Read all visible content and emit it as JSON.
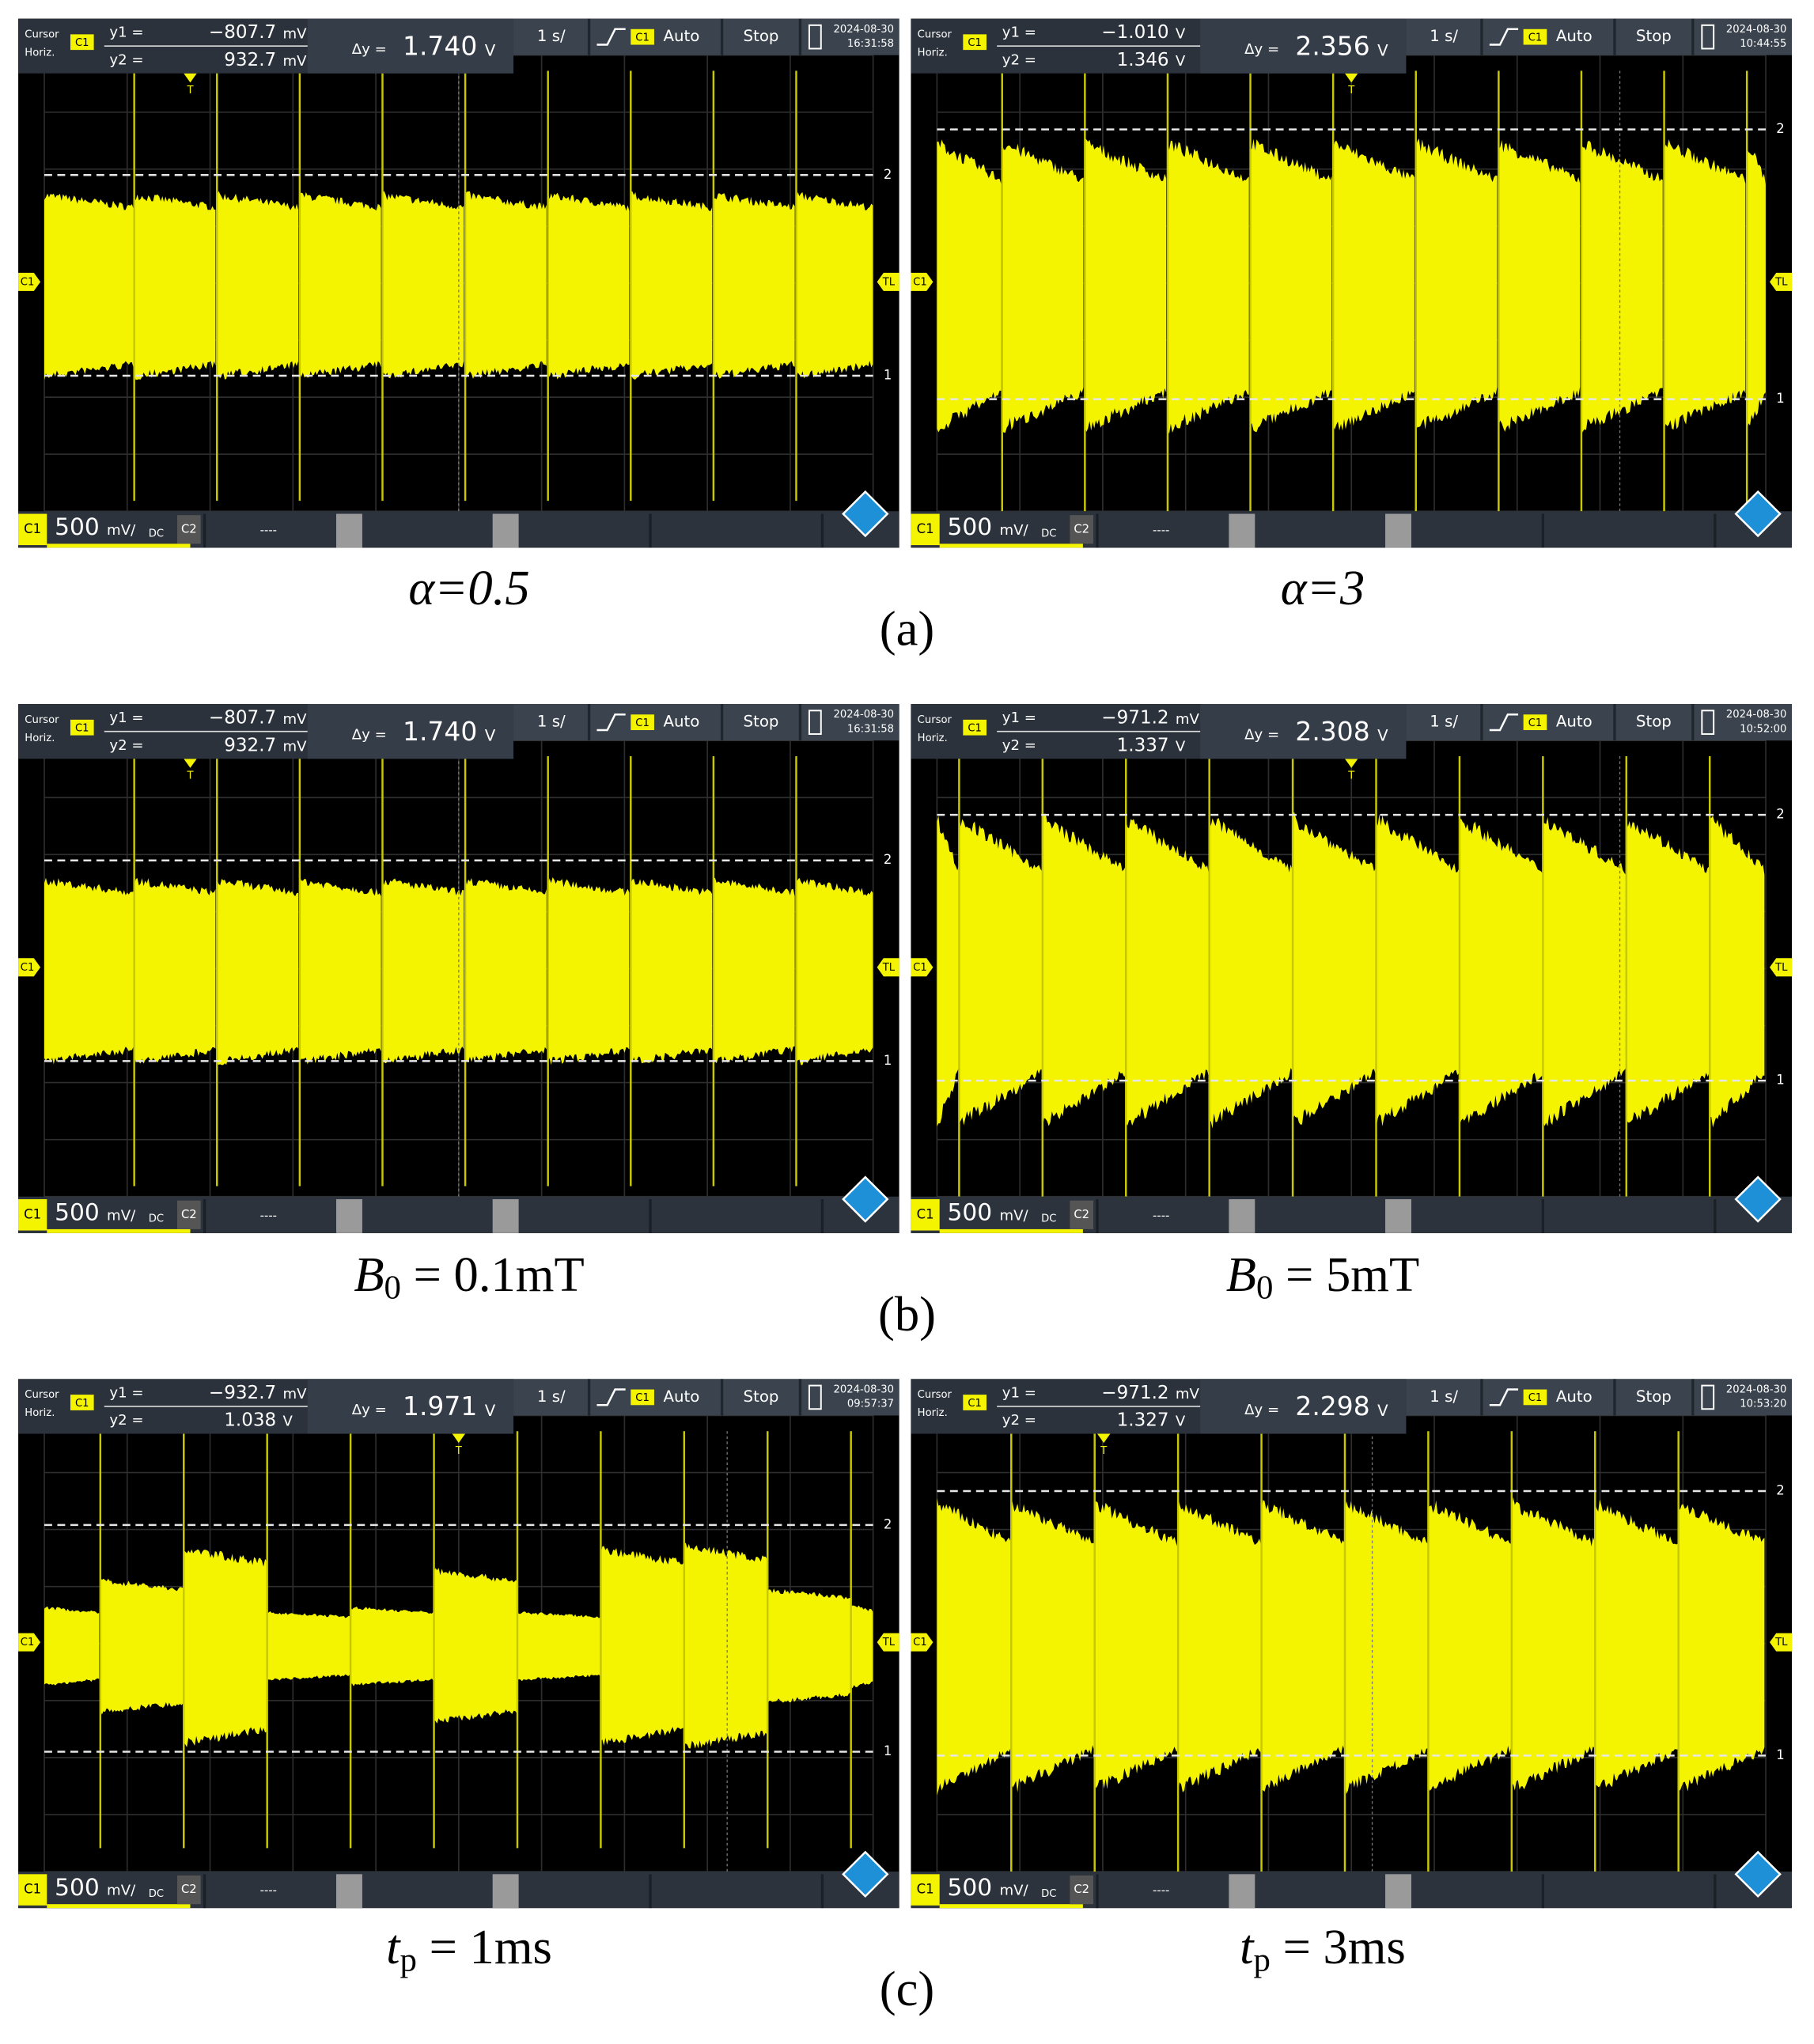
{
  "rows": [
    {
      "label": "(a)",
      "panels": [
        {
          "caption": {
            "text": "α=0.5"
          },
          "scope": {
            "cursor_label": "Cursor",
            "horiz_label": "Horiz.",
            "channel": "C1",
            "y1_label": "y1 =",
            "y1_value": "−807.7",
            "y1_unit": "mV",
            "y2_label": "y2 =",
            "y2_value": "932.7",
            "y2_unit": "mV",
            "dy_label": "Δy =",
            "dy_value": "1.740",
            "dy_unit": "V",
            "timebase": "1 s/",
            "trigger_source": "C1",
            "trigger_mode": "Auto",
            "run_state": "Stop",
            "date": "2024-08-30",
            "time": "16:31:58",
            "footer_channel": "C1",
            "scale": "500",
            "scale_unit": "mV/",
            "coupling": "DC",
            "ch2": "C2",
            "ch2_state": "----",
            "left_marker": "C1",
            "right_marker": "TL",
            "cursor2_marker": "2",
            "cursor1_marker": "1",
            "trigger_marker": "T"
          }
        },
        {
          "caption": {
            "text": "α=3"
          },
          "scope": {
            "cursor_label": "Cursor",
            "horiz_label": "Horiz.",
            "channel": "C1",
            "y1_label": "y1 =",
            "y1_value": "−1.010",
            "y1_unit": "V",
            "y2_label": "y2 =",
            "y2_value": "1.346",
            "y2_unit": "V",
            "dy_label": "Δy =",
            "dy_value": "2.356",
            "dy_unit": "V",
            "timebase": "1 s/",
            "trigger_source": "C1",
            "trigger_mode": "Auto",
            "run_state": "Stop",
            "date": "2024-08-30",
            "time": "10:44:55",
            "footer_channel": "C1",
            "scale": "500",
            "scale_unit": "mV/",
            "coupling": "DC",
            "ch2": "C2",
            "ch2_state": "----",
            "left_marker": "C1",
            "right_marker": "TL",
            "cursor2_marker": "2",
            "cursor1_marker": "1",
            "trigger_marker": "T"
          }
        }
      ]
    },
    {
      "label": "(b)",
      "panels": [
        {
          "caption": {
            "symbol": "B",
            "subscript": "0",
            "text": " = 0.1mT"
          },
          "scope": {
            "cursor_label": "Cursor",
            "horiz_label": "Horiz.",
            "channel": "C1",
            "y1_label": "y1 =",
            "y1_value": "−807.7",
            "y1_unit": "mV",
            "y2_label": "y2 =",
            "y2_value": "932.7",
            "y2_unit": "mV",
            "dy_label": "Δy =",
            "dy_value": "1.740",
            "dy_unit": "V",
            "timebase": "1 s/",
            "trigger_source": "C1",
            "trigger_mode": "Auto",
            "run_state": "Stop",
            "date": "2024-08-30",
            "time": "16:31:58",
            "footer_channel": "C1",
            "scale": "500",
            "scale_unit": "mV/",
            "coupling": "DC",
            "ch2": "C2",
            "ch2_state": "----",
            "left_marker": "C1",
            "right_marker": "TL",
            "cursor2_marker": "2",
            "cursor1_marker": "1",
            "trigger_marker": "T"
          }
        },
        {
          "caption": {
            "symbol": "B",
            "subscript": "0",
            "text": " = 5mT"
          },
          "scope": {
            "cursor_label": "Cursor",
            "horiz_label": "Horiz.",
            "channel": "C1",
            "y1_label": "y1 =",
            "y1_value": "−971.2",
            "y1_unit": "mV",
            "y2_label": "y2 =",
            "y2_value": "1.337",
            "y2_unit": "V",
            "dy_label": "Δy =",
            "dy_value": "2.308",
            "dy_unit": "V",
            "timebase": "1 s/",
            "trigger_source": "C1",
            "trigger_mode": "Auto",
            "run_state": "Stop",
            "date": "2024-08-30",
            "time": "10:52:00",
            "footer_channel": "C1",
            "scale": "500",
            "scale_unit": "mV/",
            "coupling": "DC",
            "ch2": "C2",
            "ch2_state": "----",
            "left_marker": "C1",
            "right_marker": "TL",
            "cursor2_marker": "2",
            "cursor1_marker": "1",
            "trigger_marker": "T"
          }
        }
      ]
    },
    {
      "label": "(c)",
      "panels": [
        {
          "caption": {
            "symbol": "t",
            "subscript": "p",
            "text": " = 1ms"
          },
          "scope": {
            "cursor_label": "Cursor",
            "horiz_label": "Horiz.",
            "channel": "C1",
            "y1_label": "y1 =",
            "y1_value": "−932.7",
            "y1_unit": "mV",
            "y2_label": "y2 =",
            "y2_value": "1.038",
            "y2_unit": "V",
            "dy_label": "Δy =",
            "dy_value": "1.971",
            "dy_unit": "V",
            "timebase": "1 s/",
            "trigger_source": "C1",
            "trigger_mode": "Auto",
            "run_state": "Stop",
            "date": "2024-08-30",
            "time": "09:57:37",
            "footer_channel": "C1",
            "scale": "500",
            "scale_unit": "mV/",
            "coupling": "DC",
            "ch2": "C2",
            "ch2_state": "----",
            "left_marker": "C1",
            "right_marker": "TL",
            "cursor2_marker": "2",
            "cursor1_marker": "1",
            "trigger_marker": "T"
          }
        },
        {
          "caption": {
            "symbol": "t",
            "subscript": "p",
            "text": " = 3ms"
          },
          "scope": {
            "cursor_label": "Cursor",
            "horiz_label": "Horiz.",
            "channel": "C1",
            "y1_label": "y1 =",
            "y1_value": "−971.2",
            "y1_unit": "mV",
            "y2_label": "y2 =",
            "y2_value": "1.327",
            "y2_unit": "V",
            "dy_label": "Δy =",
            "dy_value": "2.298",
            "dy_unit": "V",
            "timebase": "1 s/",
            "trigger_source": "C1",
            "trigger_mode": "Auto",
            "run_state": "Stop",
            "date": "2024-08-30",
            "time": "10:53:20",
            "footer_channel": "C1",
            "scale": "500",
            "scale_unit": "mV/",
            "coupling": "DC",
            "ch2": "C2",
            "ch2_state": "----",
            "left_marker": "C1",
            "right_marker": "TL",
            "cursor2_marker": "2",
            "cursor1_marker": "1",
            "trigger_marker": "T"
          }
        }
      ]
    }
  ]
}
